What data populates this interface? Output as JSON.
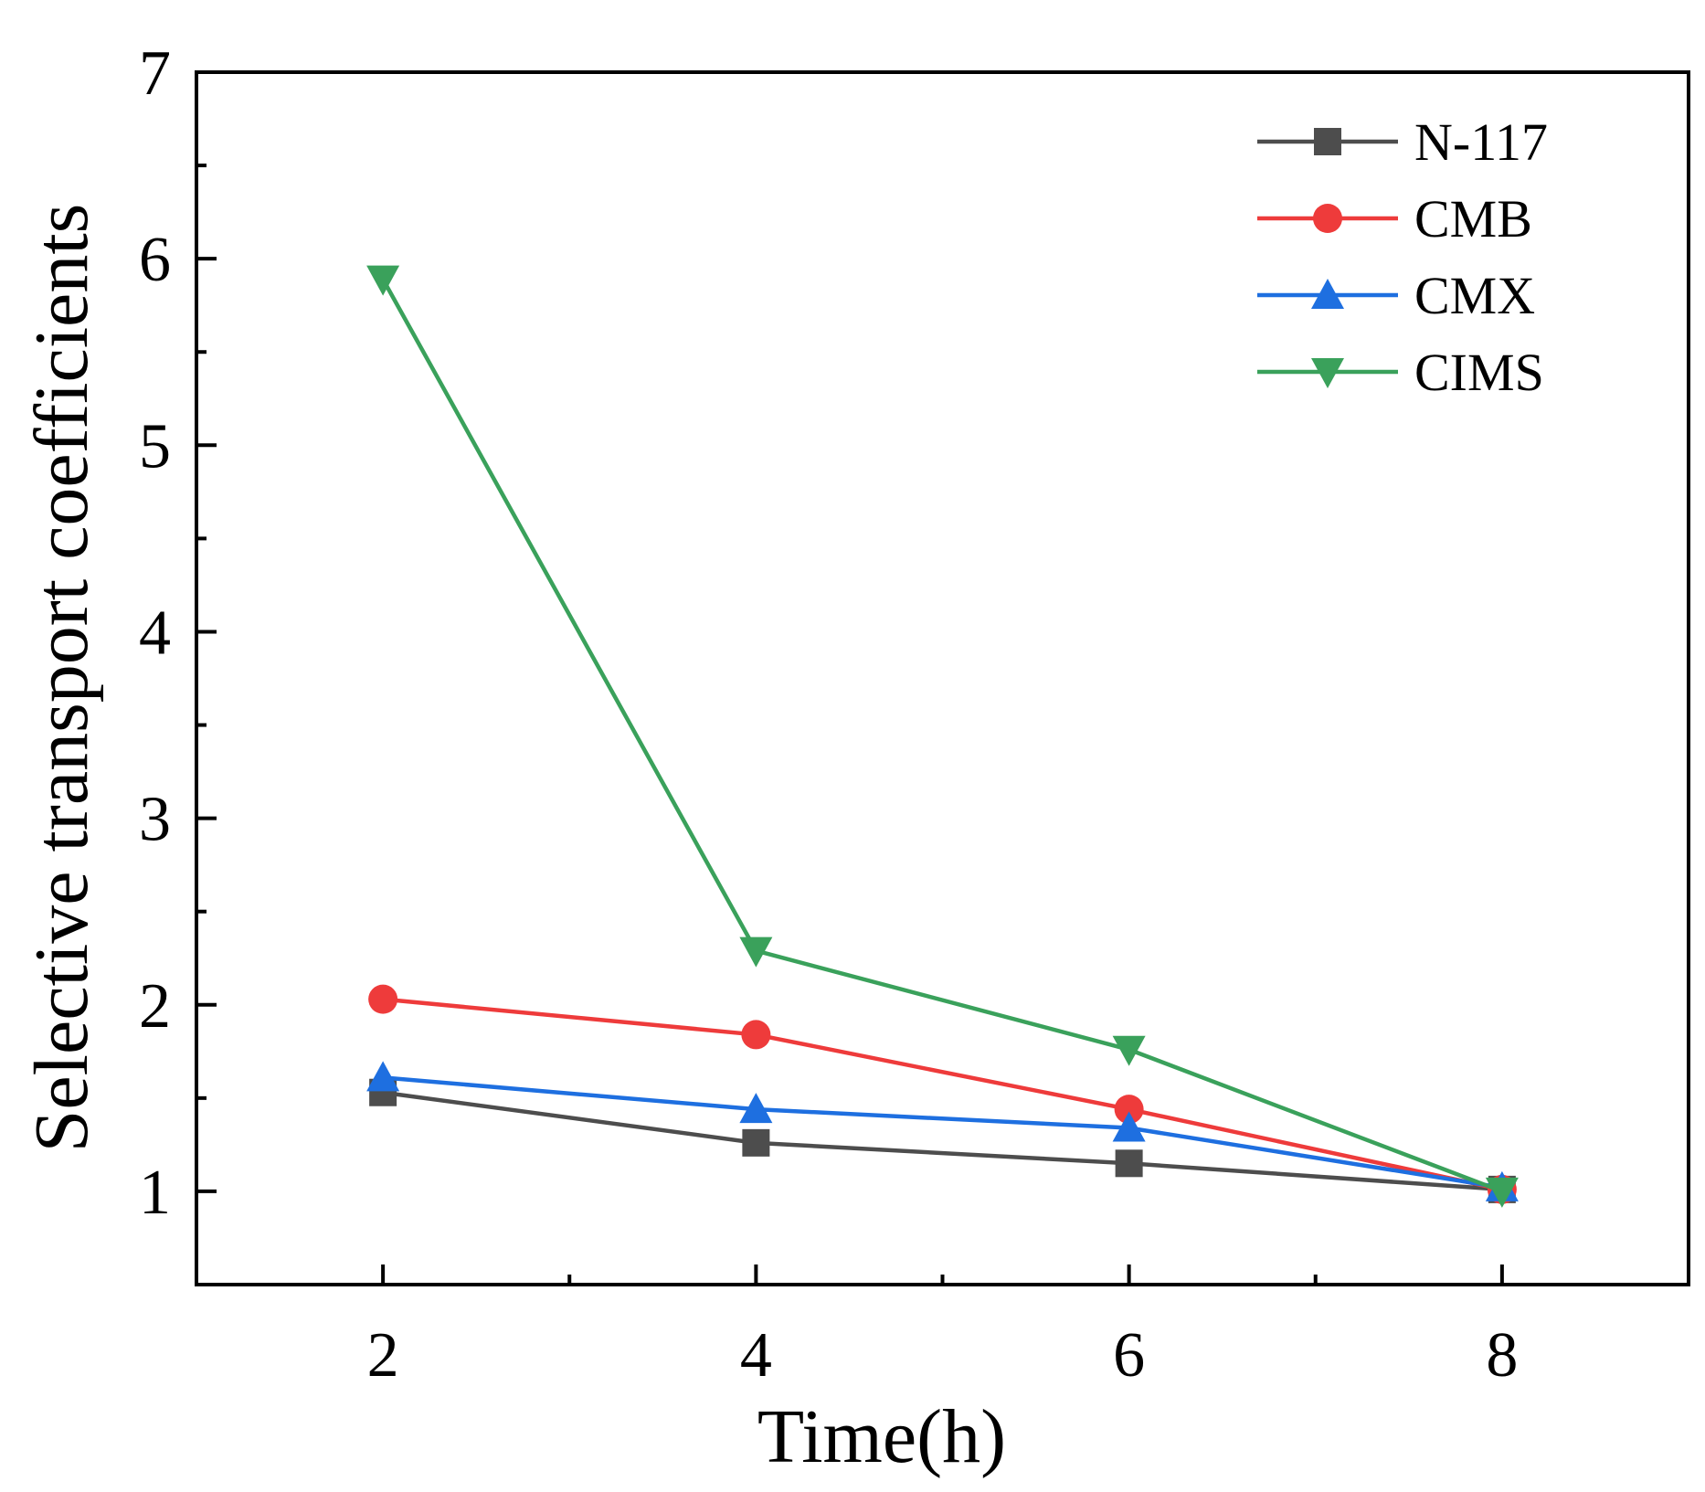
{
  "chart_data": {
    "type": "line",
    "title": "",
    "xlabel": "Time(h)",
    "ylabel": "Selective transport coefficients",
    "x": [
      2,
      4,
      6,
      8
    ],
    "xlim": [
      1,
      9
    ],
    "ylim": [
      0.5,
      7
    ],
    "xticks": [
      2,
      4,
      6,
      8
    ],
    "xtick_labels": [
      "2",
      "4",
      "6",
      "8"
    ],
    "yticks": [
      1,
      2,
      3,
      4,
      5,
      6,
      7
    ],
    "ytick_labels": [
      "1",
      "2",
      "3",
      "4",
      "5",
      "6",
      "7"
    ],
    "legend_position": "top-right",
    "grid": false,
    "series": [
      {
        "name": "N-117",
        "marker": "square",
        "color": "#4d4d4d",
        "values": [
          1.53,
          1.26,
          1.15,
          1.01
        ]
      },
      {
        "name": "CMB",
        "marker": "circle",
        "color": "#ee3b3b",
        "values": [
          2.03,
          1.84,
          1.44,
          1.01
        ]
      },
      {
        "name": "CMX",
        "marker": "triangle-up",
        "color": "#1e6fe0",
        "values": [
          1.61,
          1.44,
          1.34,
          1.02
        ]
      },
      {
        "name": "CIMS",
        "marker": "triangle-down",
        "color": "#3aa15b",
        "values": [
          5.89,
          2.29,
          1.76,
          1.0
        ]
      }
    ]
  }
}
